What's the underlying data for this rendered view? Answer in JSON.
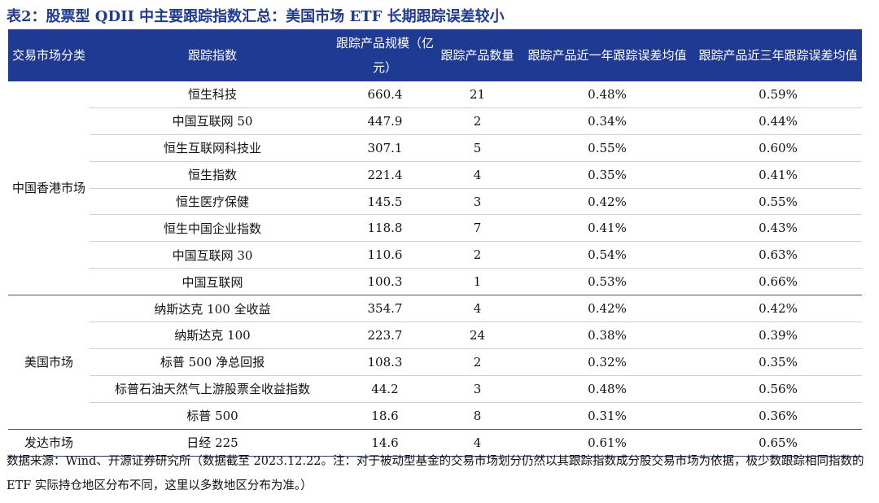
{
  "title": "表2：股票型 QDII 中主要跟踪指数汇总：美国市场 ETF 长期跟踪误差较小",
  "table": {
    "headers": [
      "交易市场分类",
      "跟踪指数",
      "跟踪产品规模（亿元）",
      "跟踪产品数量",
      "跟踪产品近一年跟踪误差均值",
      "跟踪产品近三年跟踪误差均值"
    ],
    "groups": [
      {
        "market": "中国香港市场",
        "rows": [
          {
            "index": "恒生科技",
            "size": "660.4",
            "count": "21",
            "te1": "0.48%",
            "te3": "0.59%"
          },
          {
            "index": "中国互联网 50",
            "size": "447.9",
            "count": "2",
            "te1": "0.34%",
            "te3": "0.44%"
          },
          {
            "index": "恒生互联网科技业",
            "size": "307.1",
            "count": "5",
            "te1": "0.55%",
            "te3": "0.60%"
          },
          {
            "index": "恒生指数",
            "size": "221.4",
            "count": "4",
            "te1": "0.35%",
            "te3": "0.41%"
          },
          {
            "index": "恒生医疗保健",
            "size": "145.5",
            "count": "3",
            "te1": "0.42%",
            "te3": "0.55%"
          },
          {
            "index": "恒生中国企业指数",
            "size": "118.8",
            "count": "7",
            "te1": "0.41%",
            "te3": "0.43%"
          },
          {
            "index": "中国互联网 30",
            "size": "110.6",
            "count": "2",
            "te1": "0.54%",
            "te3": "0.63%"
          },
          {
            "index": "中国互联网",
            "size": "100.3",
            "count": "1",
            "te1": "0.53%",
            "te3": "0.66%"
          }
        ]
      },
      {
        "market": "美国市场",
        "rows": [
          {
            "index": "纳斯达克 100 全收益",
            "size": "354.7",
            "count": "4",
            "te1": "0.42%",
            "te3": "0.42%"
          },
          {
            "index": "纳斯达克 100",
            "size": "223.7",
            "count": "24",
            "te1": "0.38%",
            "te3": "0.39%"
          },
          {
            "index": "标普 500 净总回报",
            "size": "108.3",
            "count": "2",
            "te1": "0.32%",
            "te3": "0.35%"
          },
          {
            "index": "标普石油天然气上游股票全收益指数",
            "size": "44.2",
            "count": "3",
            "te1": "0.48%",
            "te3": "0.56%"
          },
          {
            "index": "标普 500",
            "size": "18.6",
            "count": "8",
            "te1": "0.31%",
            "te3": "0.36%"
          }
        ]
      },
      {
        "market": "发达市场",
        "rows": [
          {
            "index": "日经 225",
            "size": "14.6",
            "count": "4",
            "te1": "0.61%",
            "te3": "0.65%"
          }
        ]
      }
    ]
  },
  "note": "数据来源：Wind、开源证券研究所（数据截至 2023.12.22。注：对于被动型基金的交易市场划分仍然以其跟踪指数成分股交易市场为依据，极少数跟踪相同指数的 ETF 实际持仓地区分布不同，这里以多数地区分布为准。）"
}
